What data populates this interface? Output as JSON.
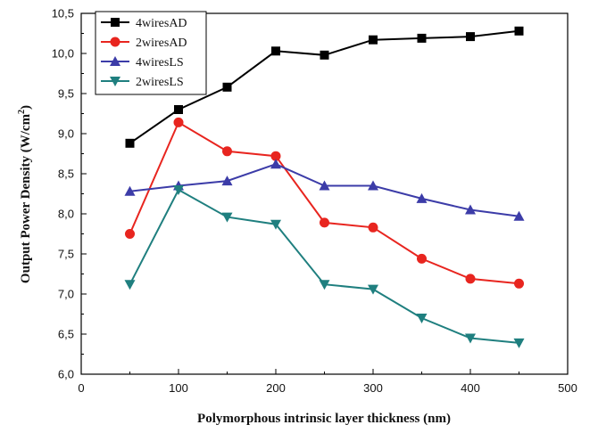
{
  "chart_data": {
    "type": "line",
    "title": "",
    "xlabel": "Polymorphous intrinsic layer thickness (nm)",
    "ylabel_main": "Output Power Density (W/cm",
    "ylabel_sup": "2",
    "ylabel_close": ")",
    "xlim": [
      0,
      500
    ],
    "ylim": [
      6.0,
      10.5
    ],
    "xticks": [
      0,
      100,
      200,
      300,
      400,
      500
    ],
    "yticks": [
      6.0,
      6.5,
      7.0,
      7.5,
      8.0,
      8.5,
      9.0,
      9.5,
      10.0,
      10.5
    ],
    "xtick_labels": [
      "0",
      "100",
      "200",
      "300",
      "400",
      "500"
    ],
    "ytick_labels": [
      "6,0",
      "6,5",
      "7,0",
      "7,5",
      "8,0",
      "8,5",
      "9,0",
      "9,5",
      "10,0",
      "10,5"
    ],
    "grid": false,
    "legend_position": "top-left",
    "x": [
      50,
      100,
      150,
      200,
      250,
      300,
      350,
      400,
      450
    ],
    "series": [
      {
        "name": "4wiresAD",
        "color": "#000000",
        "marker": "square",
        "values": [
          8.88,
          9.3,
          9.58,
          10.03,
          9.98,
          10.17,
          10.19,
          10.21,
          10.28
        ]
      },
      {
        "name": "2wiresAD",
        "color": "#e8251f",
        "marker": "circle",
        "values": [
          7.75,
          9.14,
          8.78,
          8.72,
          7.89,
          7.83,
          7.44,
          7.19,
          7.13
        ]
      },
      {
        "name": "4wiresLS",
        "color": "#3c3ca8",
        "marker": "triangle-up",
        "values": [
          8.28,
          8.35,
          8.41,
          8.62,
          8.35,
          8.35,
          8.19,
          8.05,
          7.97
        ]
      },
      {
        "name": "2wiresLS",
        "color": "#1f7f7f",
        "marker": "triangle-down",
        "values": [
          7.12,
          8.3,
          7.96,
          7.87,
          7.12,
          7.06,
          6.7,
          6.45,
          6.39
        ]
      }
    ]
  }
}
